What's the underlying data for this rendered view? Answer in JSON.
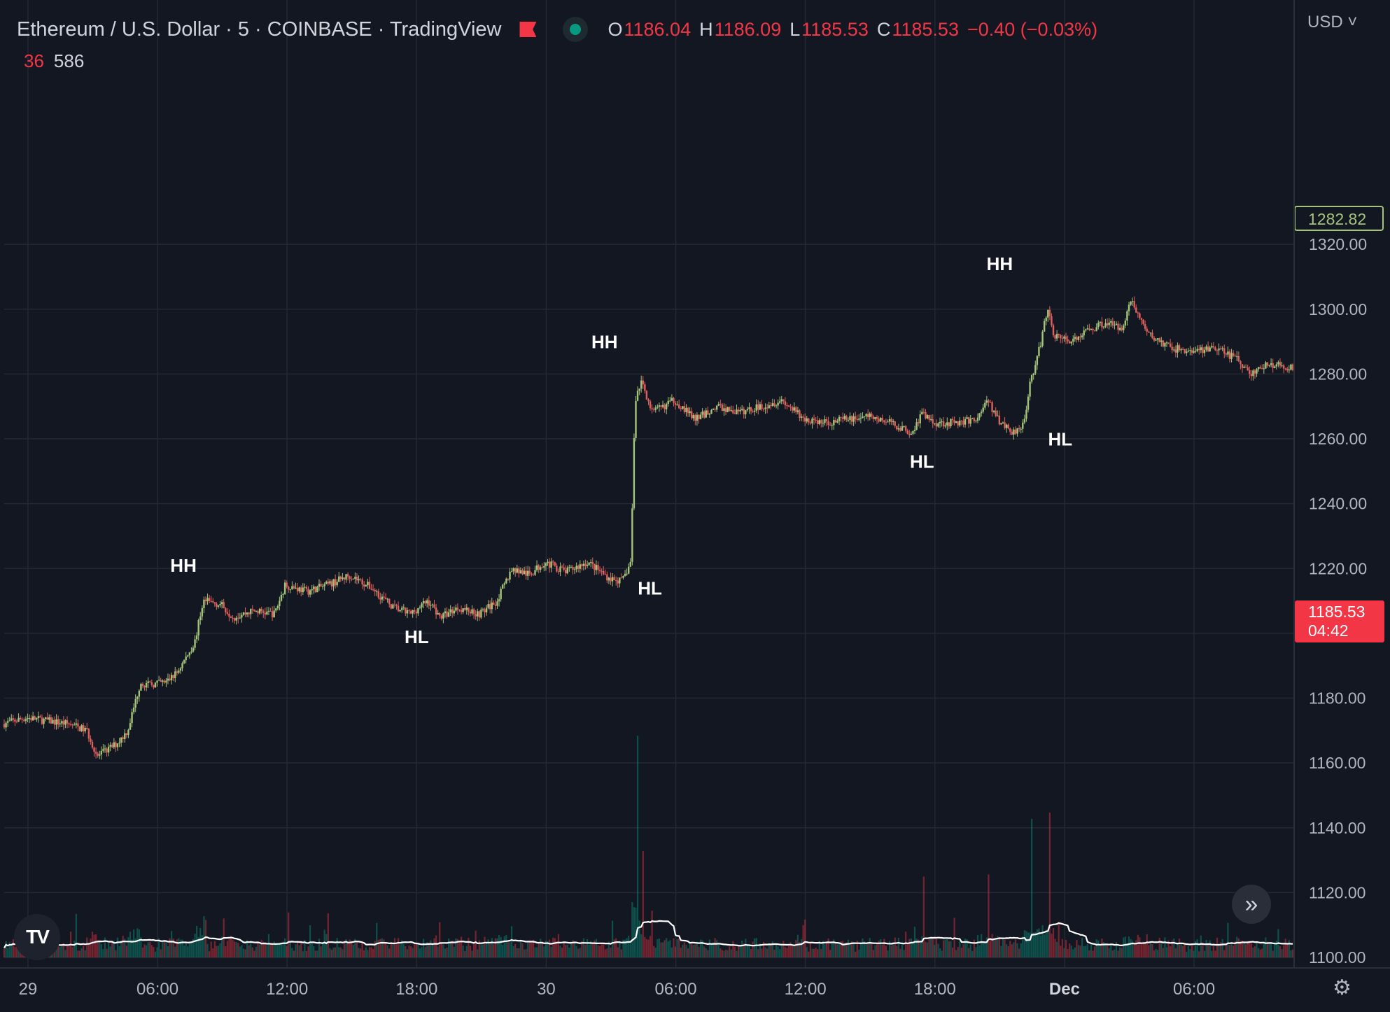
{
  "header": {
    "title": "Ethereum / U.S. Dollar · 5 · COINBASE · TradingView",
    "ohlc": {
      "o_label": "O",
      "o_value": "1186.04",
      "h_label": "H",
      "h_value": "1186.09",
      "l_label": "L",
      "l_value": "1185.53",
      "c_label": "C",
      "c_value": "1185.53",
      "change": "−0.40 (−0.03%)"
    },
    "volume_legend": {
      "value_a": "36",
      "value_b": "586"
    },
    "currency": "USD"
  },
  "price_labels": {
    "last_price": "1282.82",
    "current_price": "1185.53",
    "countdown": "04:42"
  },
  "colors": {
    "background": "#131722",
    "grid": "#242833",
    "up": "#089981",
    "down": "#f23645",
    "candle_up": "#a3c47a",
    "candle_down": "#e0605b",
    "text": "#d1d4dc"
  },
  "icons": {
    "flag": "flag-icon",
    "status": "status-dot-icon",
    "logo": "tradingview-logo-icon",
    "scroll": "double-chevron-right-icon",
    "settings": "gear-icon"
  },
  "chart_data": {
    "type": "candlestick",
    "symbol": "Ethereum / U.S. Dollar",
    "interval": "5",
    "y_ticks": [
      1320,
      1300,
      1280,
      1260,
      1240,
      1220,
      1200,
      1180,
      1160,
      1140,
      1120,
      1100
    ],
    "y_tick_labels": [
      "1320.00",
      "1300.00",
      "1280.00",
      "1260.00",
      "1240.00",
      "1220.00",
      "1200.00",
      "1180.00",
      "1160.00",
      "1140.00",
      "1120.00",
      "1100.00"
    ],
    "ylim": [
      1098.5,
      1322.8
    ],
    "x_ticks": [
      "29",
      "06:00",
      "12:00",
      "18:00",
      "30",
      "06:00",
      "12:00",
      "18:00",
      "Dec",
      "06:00"
    ],
    "x_tick_hours": [
      0,
      6,
      12,
      18,
      24,
      30,
      36,
      42,
      48,
      54
    ],
    "xlim_hours": [
      -1.1,
      58.6
    ],
    "price_path": [
      {
        "t": -1.1,
        "p": 1172
      },
      {
        "t": 0.0,
        "p": 1174
      },
      {
        "t": 1.0,
        "p": 1173
      },
      {
        "t": 2.0,
        "p": 1172
      },
      {
        "t": 2.8,
        "p": 1170
      },
      {
        "t": 3.3,
        "p": 1162
      },
      {
        "t": 4.2,
        "p": 1166
      },
      {
        "t": 4.7,
        "p": 1170
      },
      {
        "t": 5.3,
        "p": 1185
      },
      {
        "t": 5.6,
        "p": 1184
      },
      {
        "t": 6.5,
        "p": 1185
      },
      {
        "t": 7.0,
        "p": 1188
      },
      {
        "t": 7.8,
        "p": 1197
      },
      {
        "t": 8.2,
        "p": 1210
      },
      {
        "t": 9.0,
        "p": 1209
      },
      {
        "t": 9.6,
        "p": 1205
      },
      {
        "t": 10.5,
        "p": 1207
      },
      {
        "t": 11.5,
        "p": 1206
      },
      {
        "t": 12.0,
        "p": 1215
      },
      {
        "t": 13.0,
        "p": 1213
      },
      {
        "t": 14.0,
        "p": 1215
      },
      {
        "t": 15.0,
        "p": 1218
      },
      {
        "t": 16.0,
        "p": 1214
      },
      {
        "t": 17.0,
        "p": 1208
      },
      {
        "t": 17.8,
        "p": 1206
      },
      {
        "t": 18.6,
        "p": 1210
      },
      {
        "t": 19.2,
        "p": 1205
      },
      {
        "t": 20.0,
        "p": 1208
      },
      {
        "t": 21.0,
        "p": 1206
      },
      {
        "t": 21.8,
        "p": 1210
      },
      {
        "t": 22.5,
        "p": 1220
      },
      {
        "t": 23.3,
        "p": 1218
      },
      {
        "t": 24.0,
        "p": 1222
      },
      {
        "t": 25.0,
        "p": 1219
      },
      {
        "t": 26.0,
        "p": 1222
      },
      {
        "t": 27.0,
        "p": 1217
      },
      {
        "t": 27.6,
        "p": 1216
      },
      {
        "t": 28.0,
        "p": 1222
      },
      {
        "t": 28.2,
        "p": 1272
      },
      {
        "t": 28.5,
        "p": 1278
      },
      {
        "t": 29.0,
        "p": 1268
      },
      {
        "t": 30.0,
        "p": 1272
      },
      {
        "t": 31.0,
        "p": 1266
      },
      {
        "t": 32.0,
        "p": 1270
      },
      {
        "t": 33.0,
        "p": 1268
      },
      {
        "t": 34.0,
        "p": 1270
      },
      {
        "t": 35.0,
        "p": 1272
      },
      {
        "t": 36.0,
        "p": 1266
      },
      {
        "t": 37.0,
        "p": 1265
      },
      {
        "t": 38.0,
        "p": 1266
      },
      {
        "t": 39.0,
        "p": 1267
      },
      {
        "t": 40.0,
        "p": 1265
      },
      {
        "t": 41.0,
        "p": 1262
      },
      {
        "t": 41.5,
        "p": 1268
      },
      {
        "t": 42.0,
        "p": 1265
      },
      {
        "t": 43.0,
        "p": 1265
      },
      {
        "t": 44.0,
        "p": 1266
      },
      {
        "t": 44.5,
        "p": 1272
      },
      {
        "t": 45.0,
        "p": 1266
      },
      {
        "t": 45.7,
        "p": 1262
      },
      {
        "t": 46.2,
        "p": 1265
      },
      {
        "t": 46.5,
        "p": 1278
      },
      {
        "t": 46.8,
        "p": 1284
      },
      {
        "t": 47.3,
        "p": 1300
      },
      {
        "t": 47.6,
        "p": 1292
      },
      {
        "t": 48.5,
        "p": 1290
      },
      {
        "t": 49.0,
        "p": 1293
      },
      {
        "t": 50.0,
        "p": 1296
      },
      {
        "t": 50.7,
        "p": 1294
      },
      {
        "t": 51.2,
        "p": 1303
      },
      {
        "t": 51.5,
        "p": 1298
      },
      {
        "t": 52.0,
        "p": 1292
      },
      {
        "t": 53.0,
        "p": 1288
      },
      {
        "t": 54.0,
        "p": 1287
      },
      {
        "t": 55.0,
        "p": 1288
      },
      {
        "t": 56.0,
        "p": 1285
      },
      {
        "t": 56.7,
        "p": 1280
      },
      {
        "t": 57.5,
        "p": 1283
      },
      {
        "t": 58.6,
        "p": 1282
      }
    ],
    "volume_spikes": [
      {
        "t": 28.2,
        "v": 0.8
      },
      {
        "t": 28.5,
        "v": 0.38
      },
      {
        "t": 46.5,
        "v": 0.48
      },
      {
        "t": 47.3,
        "v": 0.5
      },
      {
        "t": 44.5,
        "v": 0.3
      },
      {
        "t": 41.5,
        "v": 0.3
      }
    ],
    "annotations": [
      {
        "label": "HH",
        "t": 7.2,
        "p": 1219
      },
      {
        "label": "HL",
        "t": 18.0,
        "p": 1197
      },
      {
        "label": "HH",
        "t": 26.7,
        "p": 1288
      },
      {
        "label": "HL",
        "t": 28.8,
        "p": 1212
      },
      {
        "label": "HL",
        "t": 41.4,
        "p": 1251
      },
      {
        "label": "HH",
        "t": 45.0,
        "p": 1312
      },
      {
        "label": "HL",
        "t": 47.8,
        "p": 1258
      }
    ],
    "grid": true
  }
}
